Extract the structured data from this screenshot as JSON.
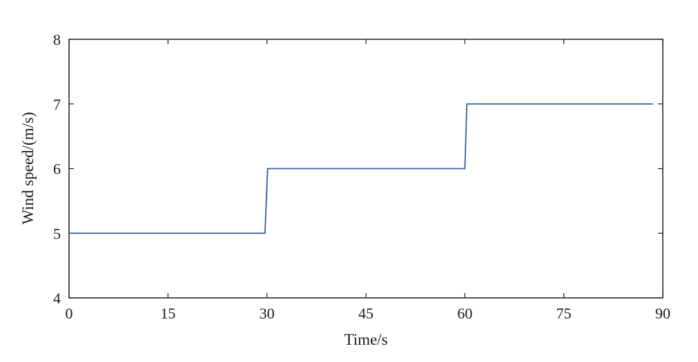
{
  "chart_data": {
    "type": "line",
    "title": "",
    "xlabel": "Time/s",
    "ylabel": "Wind speed/(m/s)",
    "xlim": [
      0,
      90
    ],
    "ylim": [
      4,
      8
    ],
    "xticks": [
      0,
      15,
      30,
      45,
      60,
      75,
      90
    ],
    "yticks": [
      4,
      5,
      6,
      7,
      8
    ],
    "xtick_labels": [
      "0",
      "15",
      "30",
      "45",
      "60",
      "75",
      "90"
    ],
    "ytick_labels": [
      "4",
      "5",
      "6",
      "7",
      "8"
    ],
    "grid": false,
    "legend": "none",
    "series": [
      {
        "color": "#2e5f9e",
        "x": [
          0,
          29.7,
          30.1,
          60.0,
          60.3,
          88.5
        ],
        "y": [
          5,
          5,
          6,
          6,
          7,
          7
        ]
      }
    ]
  }
}
